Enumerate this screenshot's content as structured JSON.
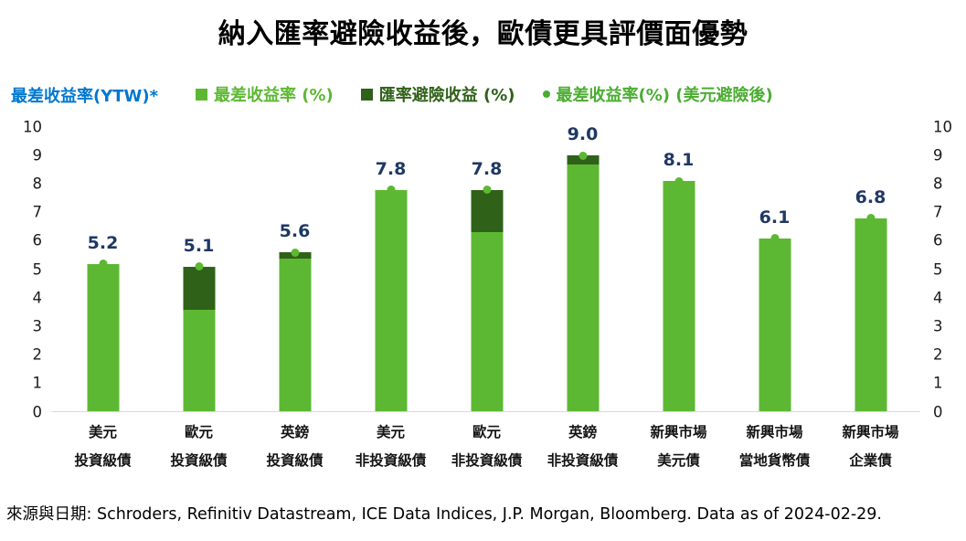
{
  "title": "納入匯率避險收益後，歐債更具評價面優勢",
  "yaxis_title": "最差收益率(YTW)*",
  "yaxis_title_color": "#0077CE",
  "legend": [
    {
      "label": "最差收益率 (%)",
      "color": "#5CB832",
      "marker": "square"
    },
    {
      "label": "匯率避險收益 (%)",
      "color": "#2F6119",
      "marker": "square"
    },
    {
      "label": "最差收益率(%) (美元避險後)",
      "color": "#4AAD30",
      "marker": "dot"
    }
  ],
  "footer": "來源與日期: Schroders, Refinitiv Datastream, ICE Data Indices, J.P. Morgan, Bloomberg. Data as of 2024-02-29.",
  "chart_data": {
    "type": "bar",
    "stacked": true,
    "title": "納入匯率避險收益後，歐債更具評價面優勢",
    "ylabel": "最差收益率(YTW)*",
    "ylim": [
      0,
      10
    ],
    "yticks": [
      0,
      1,
      2,
      3,
      4,
      5,
      6,
      7,
      8,
      9,
      10
    ],
    "grid": false,
    "legend_position": "top",
    "categories": [
      [
        "美元",
        "投資級債"
      ],
      [
        "歐元",
        "投資級債"
      ],
      [
        "英鎊",
        "投資級債"
      ],
      [
        "美元",
        "非投資級債"
      ],
      [
        "歐元",
        "非投資級債"
      ],
      [
        "英鎊",
        "非投資級債"
      ],
      [
        "新興市場",
        "美元債"
      ],
      [
        "新興市場",
        "當地貨幣債"
      ],
      [
        "新興市場",
        "企業債"
      ]
    ],
    "series": [
      {
        "name": "最差收益率 (%)",
        "type": "bar",
        "color": "#5CB832",
        "values": [
          5.2,
          3.6,
          5.4,
          7.8,
          6.3,
          8.7,
          8.1,
          6.1,
          6.8
        ]
      },
      {
        "name": "匯率避險收益 (%)",
        "type": "bar",
        "color": "#2F6119",
        "values": [
          0,
          1.5,
          0.2,
          0,
          1.5,
          0.3,
          0,
          0,
          0
        ]
      },
      {
        "name": "最差收益率(%) (美元避險後)",
        "type": "point",
        "color": "#5CB832",
        "values": [
          5.2,
          5.1,
          5.6,
          7.8,
          7.8,
          9.0,
          8.1,
          6.1,
          6.8
        ]
      }
    ],
    "data_labels": [
      "5.2",
      "5.1",
      "5.6",
      "7.8",
      "7.8",
      "9.0",
      "8.1",
      "6.1",
      "6.8"
    ],
    "data_label_color": "#1F3864"
  }
}
